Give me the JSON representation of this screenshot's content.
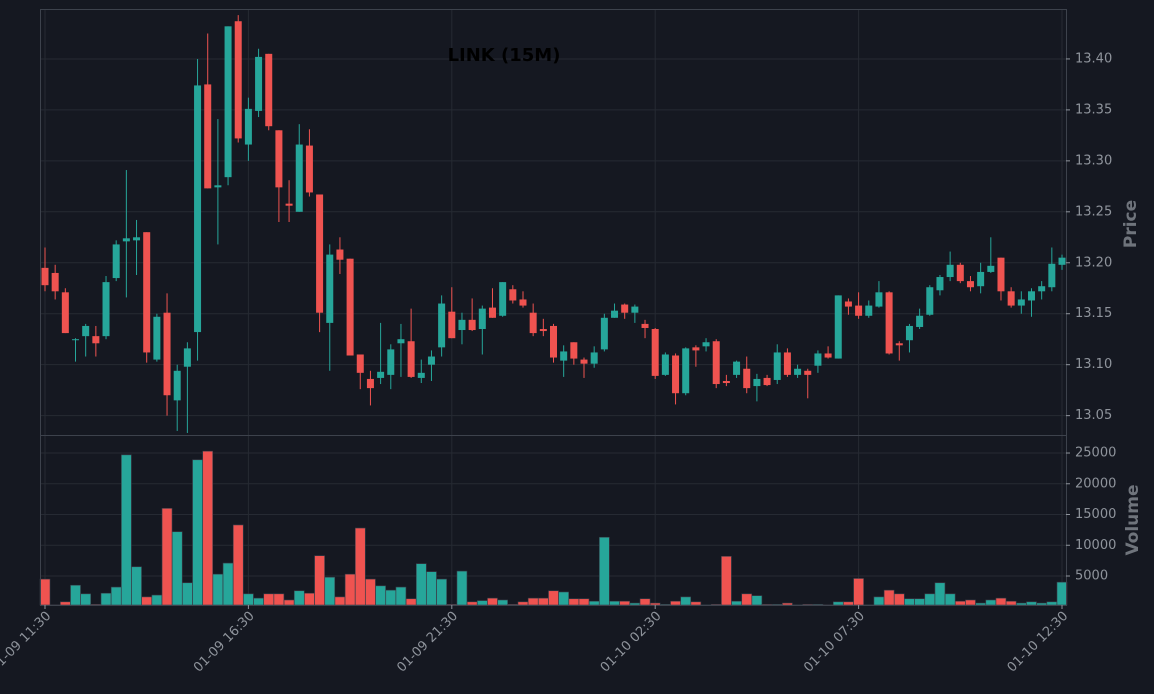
{
  "chart_data": {
    "type": "candlestick",
    "title": "LINK (15M)",
    "x": [
      "01-09 11:30",
      "01-09 11:45",
      "01-09 12:00",
      "01-09 12:15",
      "01-09 12:30",
      "01-09 12:45",
      "01-09 13:00",
      "01-09 13:15",
      "01-09 13:30",
      "01-09 13:45",
      "01-09 14:00",
      "01-09 14:15",
      "01-09 14:30",
      "01-09 14:45",
      "01-09 15:00",
      "01-09 15:15",
      "01-09 15:30",
      "01-09 15:45",
      "01-09 16:00",
      "01-09 16:15",
      "01-09 16:30",
      "01-09 16:45",
      "01-09 17:00",
      "01-09 17:15",
      "01-09 17:30",
      "01-09 17:45",
      "01-09 18:00",
      "01-09 18:15",
      "01-09 18:30",
      "01-09 18:45",
      "01-09 19:00",
      "01-09 19:15",
      "01-09 19:30",
      "01-09 19:45",
      "01-09 20:00",
      "01-09 20:15",
      "01-09 20:30",
      "01-09 20:45",
      "01-09 21:00",
      "01-09 21:15",
      "01-09 21:30",
      "01-09 21:45",
      "01-09 22:00",
      "01-09 22:15",
      "01-09 22:30",
      "01-09 22:45",
      "01-09 23:00",
      "01-09 23:15",
      "01-09 23:30",
      "01-09 23:45",
      "01-10 00:00",
      "01-10 00:15",
      "01-10 00:30",
      "01-10 00:45",
      "01-10 01:00",
      "01-10 01:15",
      "01-10 01:30",
      "01-10 01:45",
      "01-10 02:00",
      "01-10 02:15",
      "01-10 02:30",
      "01-10 02:45",
      "01-10 03:00",
      "01-10 03:15",
      "01-10 03:30",
      "01-10 03:45",
      "01-10 04:00",
      "01-10 04:15",
      "01-10 04:30",
      "01-10 04:45",
      "01-10 05:00",
      "01-10 05:15",
      "01-10 05:30",
      "01-10 05:45",
      "01-10 06:00",
      "01-10 06:15",
      "01-10 06:30",
      "01-10 06:45",
      "01-10 07:00",
      "01-10 07:15",
      "01-10 07:30",
      "01-10 07:45",
      "01-10 08:00",
      "01-10 08:15",
      "01-10 08:30",
      "01-10 08:45",
      "01-10 09:00",
      "01-10 09:15",
      "01-10 09:30",
      "01-10 09:45",
      "01-10 10:00",
      "01-10 10:15",
      "01-10 10:30",
      "01-10 10:45",
      "01-10 11:00",
      "01-10 11:15",
      "01-10 11:30",
      "01-10 11:45",
      "01-10 12:00",
      "01-10 12:15",
      "01-10 12:30"
    ],
    "open": [
      13.195,
      13.19,
      13.171,
      13.124,
      13.128,
      13.128,
      13.128,
      13.185,
      13.221,
      13.222,
      13.23,
      13.105,
      13.151,
      13.065,
      13.098,
      13.132,
      13.375,
      13.274,
      13.284,
      13.437,
      13.316,
      13.349,
      13.405,
      13.33,
      13.258,
      13.25,
      13.315,
      13.267,
      13.141,
      13.213,
      13.204,
      13.11,
      13.086,
      13.087,
      13.09,
      13.121,
      13.123,
      13.087,
      13.1,
      13.117,
      13.152,
      13.134,
      13.144,
      13.135,
      13.156,
      13.148,
      13.174,
      13.164,
      13.151,
      13.135,
      13.138,
      13.104,
      13.122,
      13.105,
      13.101,
      13.115,
      13.146,
      13.159,
      13.151,
      13.14,
      13.135,
      13.09,
      13.109,
      13.072,
      13.117,
      13.118,
      13.123,
      13.084,
      13.09,
      13.096,
      13.079,
      13.087,
      13.085,
      13.112,
      13.09,
      13.094,
      13.099,
      13.111,
      13.106,
      13.162,
      13.158,
      13.148,
      13.157,
      13.171,
      13.121,
      13.124,
      13.137,
      13.149,
      13.173,
      13.186,
      13.198,
      13.182,
      13.177,
      13.191,
      13.205,
      13.172,
      13.158,
      13.163,
      13.172,
      13.176,
      13.198
    ],
    "high": [
      13.215,
      13.198,
      13.175,
      13.126,
      13.14,
      13.138,
      13.187,
      13.222,
      13.291,
      13.242,
      13.23,
      13.15,
      13.17,
      13.1,
      13.122,
      13.4,
      13.425,
      13.341,
      13.432,
      13.443,
      13.362,
      13.41,
      13.405,
      13.33,
      13.281,
      13.336,
      13.331,
      13.267,
      13.218,
      13.225,
      13.204,
      13.11,
      13.094,
      13.141,
      13.12,
      13.14,
      13.155,
      13.105,
      13.114,
      13.168,
      13.176,
      13.151,
      13.165,
      13.158,
      13.175,
      13.181,
      13.178,
      13.172,
      13.16,
      13.145,
      13.14,
      13.119,
      13.122,
      13.107,
      13.118,
      13.15,
      13.16,
      13.16,
      13.159,
      13.144,
      13.136,
      13.112,
      13.111,
      13.117,
      13.119,
      13.126,
      13.125,
      13.09,
      13.104,
      13.108,
      13.091,
      13.09,
      13.12,
      13.116,
      13.1,
      13.096,
      13.114,
      13.118,
      13.168,
      13.165,
      13.171,
      13.163,
      13.182,
      13.172,
      13.123,
      13.14,
      13.155,
      13.178,
      13.188,
      13.211,
      13.2,
      13.187,
      13.2,
      13.225,
      13.205,
      13.176,
      13.172,
      13.175,
      13.182,
      13.215,
      13.208
    ],
    "low": [
      13.172,
      13.164,
      13.131,
      13.103,
      13.108,
      13.108,
      13.125,
      13.182,
      13.166,
      13.188,
      13.102,
      13.103,
      13.05,
      13.035,
      13.033,
      13.104,
      13.273,
      13.218,
      13.276,
      13.318,
      13.3,
      13.343,
      13.33,
      13.24,
      13.24,
      13.25,
      13.265,
      13.132,
      13.094,
      13.189,
      13.109,
      13.076,
      13.06,
      13.081,
      13.076,
      13.088,
      13.087,
      13.082,
      13.084,
      13.108,
      13.126,
      13.12,
      13.133,
      13.11,
      13.146,
      13.147,
      13.16,
      13.156,
      13.128,
      13.128,
      13.102,
      13.088,
      13.1,
      13.087,
      13.097,
      13.113,
      13.146,
      13.145,
      13.141,
      13.126,
      13.086,
      13.089,
      13.061,
      13.07,
      13.098,
      13.113,
      13.077,
      13.079,
      13.087,
      13.072,
      13.064,
      13.079,
      13.081,
      13.088,
      13.087,
      13.067,
      13.092,
      13.106,
      13.106,
      13.149,
      13.145,
      13.146,
      13.156,
      13.11,
      13.104,
      13.112,
      13.135,
      13.148,
      13.168,
      13.182,
      13.18,
      13.172,
      13.17,
      13.19,
      13.163,
      13.156,
      13.15,
      13.147,
      13.164,
      13.172,
      13.193
    ],
    "close": [
      13.178,
      13.172,
      13.131,
      13.125,
      13.138,
      13.121,
      13.181,
      13.218,
      13.224,
      13.225,
      13.112,
      13.147,
      13.07,
      13.094,
      13.116,
      13.374,
      13.273,
      13.276,
      13.432,
      13.322,
      13.351,
      13.402,
      13.334,
      13.274,
      13.256,
      13.316,
      13.269,
      13.151,
      13.208,
      13.203,
      13.109,
      13.092,
      13.077,
      13.093,
      13.115,
      13.125,
      13.088,
      13.092,
      13.108,
      13.16,
      13.126,
      13.144,
      13.134,
      13.155,
      13.146,
      13.181,
      13.163,
      13.158,
      13.131,
      13.133,
      13.107,
      13.113,
      13.106,
      13.101,
      13.112,
      13.146,
      13.153,
      13.151,
      13.157,
      13.136,
      13.089,
      13.11,
      13.072,
      13.116,
      13.114,
      13.122,
      13.081,
      13.082,
      13.103,
      13.077,
      13.086,
      13.08,
      13.112,
      13.09,
      13.096,
      13.09,
      13.111,
      13.107,
      13.168,
      13.157,
      13.148,
      13.158,
      13.171,
      13.111,
      13.119,
      13.138,
      13.148,
      13.176,
      13.186,
      13.198,
      13.182,
      13.176,
      13.191,
      13.197,
      13.172,
      13.158,
      13.164,
      13.172,
      13.177,
      13.199,
      13.205
    ],
    "volume": [
      4500,
      300,
      800,
      3500,
      2100,
      400,
      2200,
      3200,
      24700,
      6500,
      1600,
      1900,
      16000,
      12200,
      3900,
      23900,
      25300,
      5300,
      7100,
      13300,
      2100,
      1400,
      2100,
      2100,
      1100,
      2600,
      2200,
      8300,
      4800,
      1600,
      5300,
      12800,
      4500,
      3400,
      2700,
      3200,
      1300,
      7000,
      5700,
      4500,
      400,
      5800,
      800,
      1000,
      1400,
      1100,
      400,
      800,
      1400,
      1400,
      2600,
      2400,
      1300,
      1300,
      900,
      11300,
      900,
      900,
      600,
      1300,
      600,
      400,
      900,
      1600,
      800,
      300,
      400,
      8200,
      900,
      2100,
      1800,
      400,
      400,
      600,
      300,
      400,
      400,
      300,
      800,
      800,
      4600,
      300,
      1600,
      2700,
      2100,
      1300,
      1300,
      2100,
      3900,
      2100,
      900,
      1100,
      600,
      1100,
      1400,
      900,
      600,
      800,
      600,
      800,
      4000
    ],
    "up_color": "#26a69a",
    "down_color": "#ef5350",
    "ylabel": "Price",
    "ylim": [
      13.031,
      13.449
    ],
    "yticks": [
      13.05,
      {
        "value": 13.1,
        "label": "13.10"
      },
      13.15,
      {
        "value": 13.2,
        "label": "13.20"
      },
      13.25,
      {
        "value": 13.3,
        "label": "13.30"
      },
      13.35,
      {
        "value": 13.4,
        "label": "13.40"
      }
    ],
    "volume_label": "Volume",
    "volume_ylim": [
      285,
      27930
    ],
    "volume_yticks": [
      5000,
      10000,
      15000,
      20000,
      25000
    ],
    "xticks": [
      "01-09 11:30",
      "01-09 16:30",
      "01-09 21:30",
      "01-10 02:30",
      "01-10 07:30",
      "01-10 12:30"
    ],
    "grid": true
  }
}
